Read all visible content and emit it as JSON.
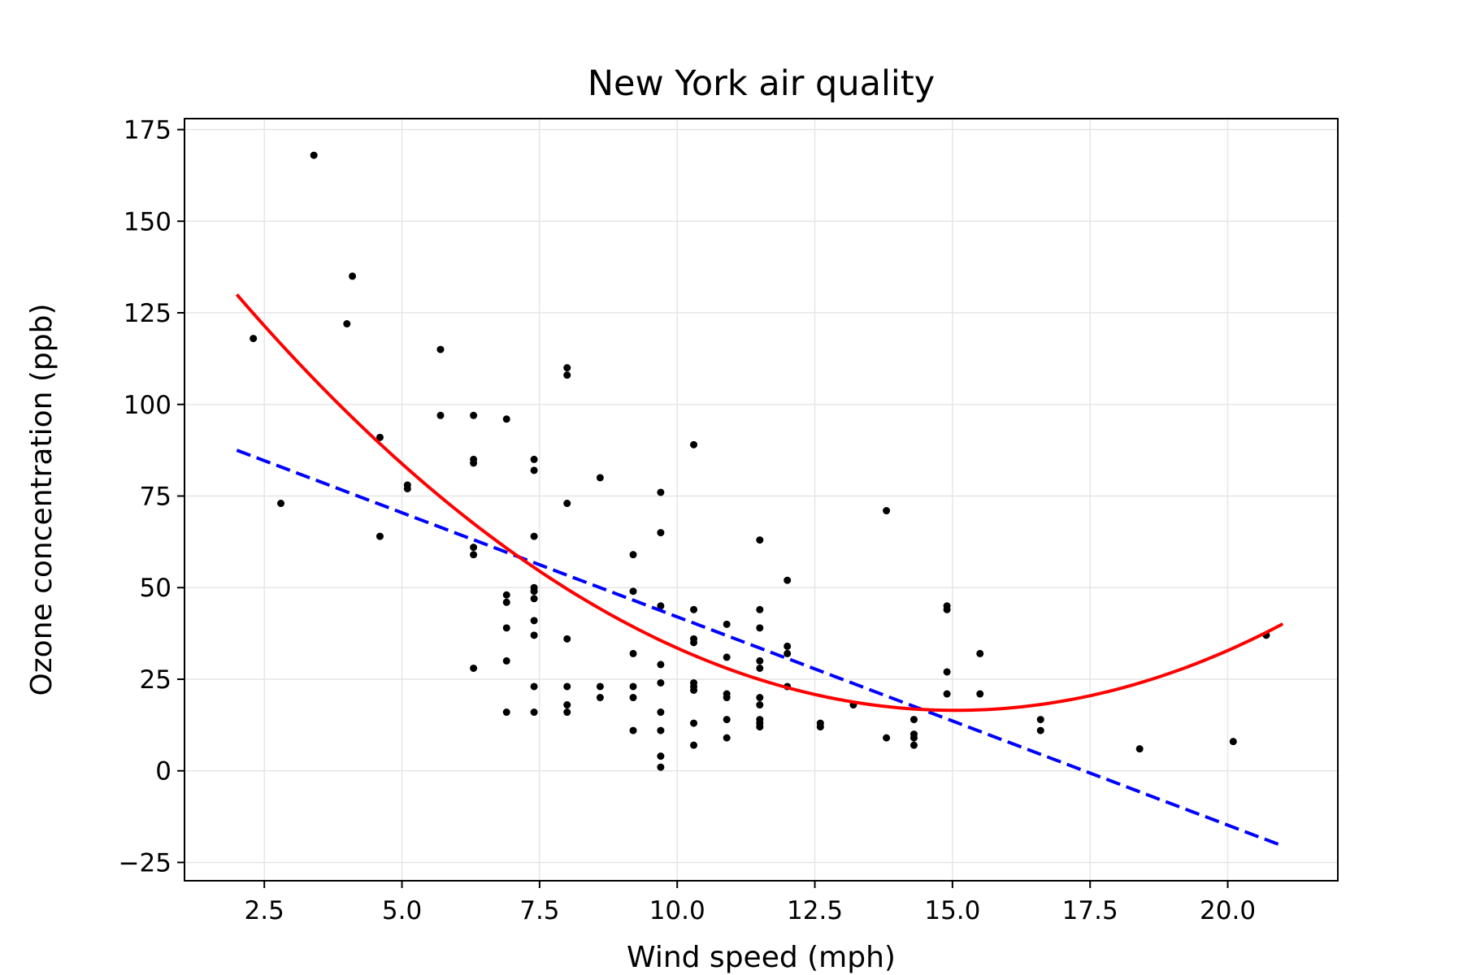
{
  "chart_data": {
    "type": "scatter",
    "title": "New York air quality",
    "xlabel": "Wind speed (mph)",
    "ylabel": "Ozone concentration (ppb)",
    "xlim": [
      1.05,
      22.0
    ],
    "ylim": [
      -30,
      178
    ],
    "xticks": [
      2.5,
      5.0,
      7.5,
      10.0,
      12.5,
      15.0,
      17.5,
      20.0
    ],
    "xtick_labels": [
      "2.5",
      "5.0",
      "7.5",
      "10.0",
      "12.5",
      "15.0",
      "17.5",
      "20.0"
    ],
    "yticks": [
      -25,
      0,
      25,
      50,
      75,
      100,
      125,
      150,
      175
    ],
    "ytick_labels": [
      "−25",
      "0",
      "25",
      "50",
      "75",
      "100",
      "125",
      "150",
      "175"
    ],
    "grid": true,
    "legend": "none",
    "series": [
      {
        "kind": "scatter",
        "color": "#000000",
        "points": [
          [
            2.3,
            118
          ],
          [
            2.8,
            73
          ],
          [
            3.4,
            168
          ],
          [
            4.0,
            122
          ],
          [
            4.1,
            135
          ],
          [
            4.6,
            91
          ],
          [
            4.6,
            64
          ],
          [
            5.1,
            78
          ],
          [
            5.1,
            77
          ],
          [
            5.7,
            115
          ],
          [
            5.7,
            97
          ],
          [
            6.3,
            97
          ],
          [
            6.3,
            85
          ],
          [
            6.3,
            84
          ],
          [
            6.3,
            61
          ],
          [
            6.3,
            59
          ],
          [
            6.3,
            28
          ],
          [
            6.9,
            96
          ],
          [
            6.9,
            48
          ],
          [
            6.9,
            46
          ],
          [
            6.9,
            39
          ],
          [
            6.9,
            30
          ],
          [
            6.9,
            16
          ],
          [
            7.4,
            85
          ],
          [
            7.4,
            82
          ],
          [
            7.4,
            64
          ],
          [
            7.4,
            50
          ],
          [
            7.4,
            49
          ],
          [
            7.4,
            47
          ],
          [
            7.4,
            41
          ],
          [
            7.4,
            37
          ],
          [
            7.4,
            23
          ],
          [
            7.4,
            16
          ],
          [
            8.0,
            110
          ],
          [
            8.0,
            108
          ],
          [
            8.0,
            73
          ],
          [
            8.0,
            36
          ],
          [
            8.0,
            23
          ],
          [
            8.0,
            18
          ],
          [
            8.0,
            16
          ],
          [
            8.6,
            80
          ],
          [
            8.6,
            23
          ],
          [
            8.6,
            20
          ],
          [
            9.2,
            59
          ],
          [
            9.2,
            49
          ],
          [
            9.2,
            32
          ],
          [
            9.2,
            23
          ],
          [
            9.2,
            20
          ],
          [
            9.2,
            11
          ],
          [
            9.7,
            76
          ],
          [
            9.7,
            65
          ],
          [
            9.7,
            45
          ],
          [
            9.7,
            29
          ],
          [
            9.7,
            24
          ],
          [
            9.7,
            16
          ],
          [
            9.7,
            11
          ],
          [
            9.7,
            4
          ],
          [
            9.7,
            1
          ],
          [
            10.3,
            89
          ],
          [
            10.3,
            44
          ],
          [
            10.3,
            36
          ],
          [
            10.3,
            35
          ],
          [
            10.3,
            24
          ],
          [
            10.3,
            23
          ],
          [
            10.3,
            22
          ],
          [
            10.3,
            13
          ],
          [
            10.3,
            7
          ],
          [
            10.9,
            40
          ],
          [
            10.9,
            31
          ],
          [
            10.9,
            21
          ],
          [
            10.9,
            20
          ],
          [
            10.9,
            14
          ],
          [
            10.9,
            9
          ],
          [
            11.5,
            63
          ],
          [
            11.5,
            44
          ],
          [
            11.5,
            39
          ],
          [
            11.5,
            30
          ],
          [
            11.5,
            28
          ],
          [
            11.5,
            20
          ],
          [
            11.5,
            18
          ],
          [
            11.5,
            14
          ],
          [
            11.5,
            13
          ],
          [
            11.5,
            12
          ],
          [
            12.0,
            52
          ],
          [
            12.0,
            34
          ],
          [
            12.0,
            32
          ],
          [
            12.0,
            23
          ],
          [
            12.6,
            13
          ],
          [
            12.6,
            12
          ],
          [
            13.2,
            18
          ],
          [
            13.8,
            71
          ],
          [
            13.8,
            9
          ],
          [
            14.3,
            14
          ],
          [
            14.3,
            10
          ],
          [
            14.3,
            9
          ],
          [
            14.3,
            7
          ],
          [
            14.9,
            45
          ],
          [
            14.9,
            44
          ],
          [
            14.9,
            27
          ],
          [
            14.9,
            21
          ],
          [
            15.5,
            32
          ],
          [
            15.5,
            21
          ],
          [
            16.6,
            14
          ],
          [
            16.6,
            11
          ],
          [
            18.4,
            6
          ],
          [
            20.1,
            8
          ],
          [
            20.7,
            37
          ]
        ]
      },
      {
        "kind": "line",
        "style": "dashed",
        "color": "#0000ff",
        "x_range": [
          2.0,
          21.0
        ],
        "points": [
          [
            2.0,
            87.5
          ],
          [
            21.0,
            -20.5
          ]
        ]
      },
      {
        "kind": "line",
        "style": "solid",
        "color": "#ff0000",
        "x_range": [
          2.0,
          21.0
        ],
        "quadratic": {
          "vertex_x": 15.05,
          "vertex_y": 16.5,
          "y_at_2": 130
        }
      }
    ]
  }
}
